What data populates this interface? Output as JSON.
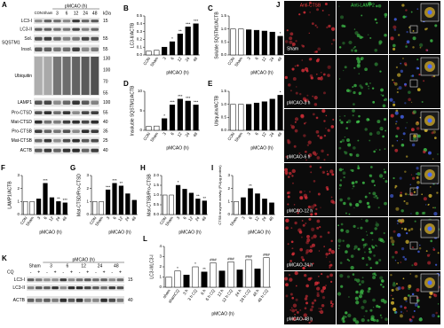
{
  "chart_data": [
    {
      "panel": "B",
      "type": "bar",
      "ylabel": "LC3-II/ACTB",
      "xlabel": "pMCAO (h)",
      "categories": [
        "CON",
        "Sham",
        "3",
        "6",
        "12",
        "24",
        "48"
      ],
      "values": [
        0.05,
        0.06,
        0.1,
        0.17,
        0.27,
        0.36,
        0.4
      ],
      "significance": [
        null,
        null,
        null,
        "*",
        "**",
        "***",
        "***"
      ],
      "colors": [
        "#ffffff",
        "#ffffff",
        "#000000",
        "#000000",
        "#000000",
        "#000000",
        "#000000"
      ],
      "ylim": [
        0,
        0.5
      ],
      "yticks": [
        {
          "value": 0,
          "label": "0.0"
        },
        0.1,
        0.2,
        0.3,
        0.4,
        0.5
      ]
    },
    {
      "panel": "C",
      "type": "bar",
      "ylabel": "Soluble SQSTM1/ACTB",
      "xlabel": "pMCAO (h)",
      "categories": [
        "CON",
        "Sham",
        "3",
        "6",
        "12",
        "24",
        "48"
      ],
      "values": [
        1.0,
        1.0,
        0.97,
        0.95,
        0.92,
        0.88,
        0.72
      ],
      "significance": [
        null,
        null,
        null,
        null,
        null,
        null,
        "*"
      ],
      "colors": [
        "#ffffff",
        "#ffffff",
        "#000000",
        "#000000",
        "#000000",
        "#000000",
        "#000000"
      ],
      "ylim": [
        0,
        1.5
      ],
      "yticks": [
        {
          "value": 0,
          "label": "0.0"
        },
        0.5,
        {
          "value": 1,
          "label": "1.0"
        },
        1.5
      ]
    },
    {
      "panel": "D",
      "type": "bar",
      "ylabel": "Insoluble SQSTM1/ACTB",
      "xlabel": "pMCAO (h)",
      "categories": [
        "CON",
        "Sham",
        "3",
        "6",
        "12",
        "24",
        "48"
      ],
      "values": [
        1,
        1.1,
        3,
        6.5,
        8,
        7.5,
        6.5
      ],
      "significance": [
        null,
        null,
        "*",
        "***",
        "***",
        "***",
        "***"
      ],
      "colors": [
        "#ffffff",
        "#ffffff",
        "#000000",
        "#000000",
        "#000000",
        "#000000",
        "#000000"
      ],
      "ylim": [
        0,
        10
      ],
      "yticks": [
        0,
        5,
        10
      ]
    },
    {
      "panel": "E",
      "type": "bar",
      "ylabel": "Ubiquitin/ACTB",
      "xlabel": "pMCAO (h)",
      "categories": [
        "CON",
        "Sham",
        "3",
        "6",
        "12",
        "24",
        "48"
      ],
      "values": [
        1.0,
        1.0,
        1.0,
        1.05,
        1.1,
        1.2,
        1.35
      ],
      "significance": [
        null,
        null,
        null,
        null,
        null,
        null,
        "*"
      ],
      "colors": [
        "#ffffff",
        "#ffffff",
        "#000000",
        "#000000",
        "#000000",
        "#000000",
        "#000000"
      ],
      "ylim": [
        0,
        1.5
      ],
      "yticks": [
        {
          "value": 0,
          "label": "0.0"
        },
        0.5,
        {
          "value": 1,
          "label": "1.0"
        },
        1.5
      ]
    },
    {
      "panel": "F",
      "type": "bar",
      "ylabel": "LAMP1/ACTB",
      "xlabel": "pMCAO (h)",
      "categories": [
        "CON",
        "Sham",
        "3",
        "6",
        "12",
        "24",
        "48"
      ],
      "values": [
        1,
        1,
        1.2,
        2.4,
        1.3,
        1.0,
        0.9
      ],
      "significance": [
        null,
        null,
        null,
        "***",
        null,
        "**",
        "***"
      ],
      "colors": [
        "#ffffff",
        "#ffffff",
        "#000000",
        "#000000",
        "#000000",
        "#000000",
        "#000000"
      ],
      "ylim": [
        0,
        3
      ],
      "yticks": [
        0,
        1,
        2,
        3
      ]
    },
    {
      "panel": "G",
      "type": "bar",
      "ylabel": "Mat-CTSD/Pro-CTSD",
      "xlabel": "pMCAO (h)",
      "categories": [
        "CON",
        "Sham",
        "3",
        "6",
        "12",
        "24",
        "48"
      ],
      "values": [
        1,
        1,
        1.9,
        2.4,
        2.2,
        1.6,
        1.1
      ],
      "significance": [
        null,
        null,
        "***",
        "***",
        "**",
        null,
        null
      ],
      "colors": [
        "#ffffff",
        "#ffffff",
        "#000000",
        "#000000",
        "#000000",
        "#000000",
        "#000000"
      ],
      "ylim": [
        0,
        3
      ],
      "yticks": [
        0,
        1,
        2,
        3
      ]
    },
    {
      "panel": "H",
      "type": "bar",
      "ylabel": "Mat-CTSB/Pro-CTSB",
      "xlabel": "pMCAO (h)",
      "categories": [
        "CON",
        "Sham",
        "3",
        "6",
        "12",
        "24",
        "48"
      ],
      "values": [
        1,
        1,
        1.5,
        1.3,
        1.1,
        0.8,
        0.7
      ],
      "significance": [
        null,
        null,
        "*",
        null,
        null,
        "**",
        "**"
      ],
      "colors": [
        "#ffffff",
        "#ffffff",
        "#000000",
        "#000000",
        "#000000",
        "#000000",
        "#000000"
      ],
      "ylim": [
        0,
        2
      ],
      "yticks": [
        {
          "value": 0,
          "label": "0.0"
        },
        0.5,
        {
          "value": 1,
          "label": "1.0"
        },
        1.5,
        {
          "value": 2,
          "label": "2.0"
        }
      ]
    },
    {
      "panel": "I",
      "type": "bar",
      "ylabel": "CTSB enzyme activity (FU/μg protein)",
      "xlabel": "pMCAO (h)",
      "categories": [
        "Sham",
        "3",
        "6",
        "12",
        "24",
        "48"
      ],
      "values": [
        1.0,
        1.3,
        2.0,
        1.6,
        1.2,
        0.9
      ],
      "significance": [
        null,
        null,
        "**",
        null,
        null,
        null
      ],
      "colors": [
        "#ffffff",
        "#000000",
        "#000000",
        "#000000",
        "#000000",
        "#000000"
      ],
      "ylim": [
        0,
        3
      ],
      "yticks": [
        0,
        1,
        2,
        3
      ]
    },
    {
      "panel": "L",
      "type": "bar",
      "ylabel": "LC3-II/LC3-I",
      "xlabel": "pMCAO (h)",
      "categories": [
        "sham",
        "shamCQ",
        "3 h",
        "3 h CQ",
        "6 h",
        "6 h CQ",
        "12 h",
        "12 h CQ",
        "24 h",
        "24 h CQ",
        "48 h",
        "48 h CQ"
      ],
      "values": [
        1.0,
        1.6,
        1.2,
        2.0,
        1.5,
        2.4,
        1.6,
        2.5,
        1.7,
        2.7,
        1.8,
        2.9
      ],
      "significance": [
        null,
        "*",
        null,
        "*",
        "**",
        "###",
        null,
        "###",
        null,
        "###",
        null,
        "###"
      ],
      "colors": [
        "#ffffff",
        "#ffffff",
        "#000000",
        "#ffffff",
        "#000000",
        "#ffffff",
        "#000000",
        "#ffffff",
        "#000000",
        "#ffffff",
        "#000000",
        "#ffffff"
      ],
      "ylim": [
        0,
        4
      ],
      "yticks": [
        0,
        1,
        2,
        3,
        4
      ]
    }
  ],
  "blot_a": {
    "label": "A",
    "lanes_fixed": [
      "CON",
      "Sham"
    ],
    "group": "pMCAO (h)",
    "times": [
      "3",
      "6",
      "12",
      "24",
      "48"
    ],
    "unit": "kDa",
    "rows": [
      {
        "name": "LC3-I",
        "markers": [
          "15"
        ]
      },
      {
        "name": "LC3-II",
        "markers": []
      },
      {
        "name": "SQSTM1",
        "sub": "Sol.",
        "markers": [
          "55"
        ]
      },
      {
        "sub": "Insol.",
        "markers": [
          "55"
        ]
      },
      {
        "name": "Ubiquitin",
        "markers": [
          "130",
          "100",
          "70",
          "55"
        ]
      },
      {
        "name": "LAMP1",
        "markers": [
          "100"
        ]
      },
      {
        "name": "Pro-CTSD",
        "markers": [
          "55"
        ]
      },
      {
        "name": "Mat-CTSD",
        "markers": [
          "40"
        ]
      },
      {
        "name": "Pro-CTSB",
        "markers": [
          "35"
        ]
      },
      {
        "name": "Mat-CTSB",
        "markers": [
          "25"
        ]
      },
      {
        "name": "ACTB",
        "markers": [
          "40"
        ]
      }
    ]
  },
  "blot_k": {
    "label": "K",
    "treatment": "CQ",
    "group": "pMCAO (h)",
    "groups": [
      "Sham",
      "3",
      "6",
      "12",
      "24",
      "48"
    ],
    "signs": [
      "-",
      "+"
    ],
    "rows": [
      {
        "name": "LC3-I",
        "markers": [
          "15"
        ]
      },
      {
        "name": "LC3-II",
        "markers": []
      },
      {
        "name": "ACTB",
        "markers": [
          "40"
        ]
      }
    ]
  },
  "micrographs": {
    "label": "J",
    "channels": [
      "Anti-CTSB",
      "Anti-LAMP2"
    ],
    "rows": [
      "Sham",
      "pMCAO-3 h",
      "pMCAO-6 h",
      "pMCAO-12 h",
      "pMCAO-24 h",
      "pMCAO-48 h"
    ]
  }
}
